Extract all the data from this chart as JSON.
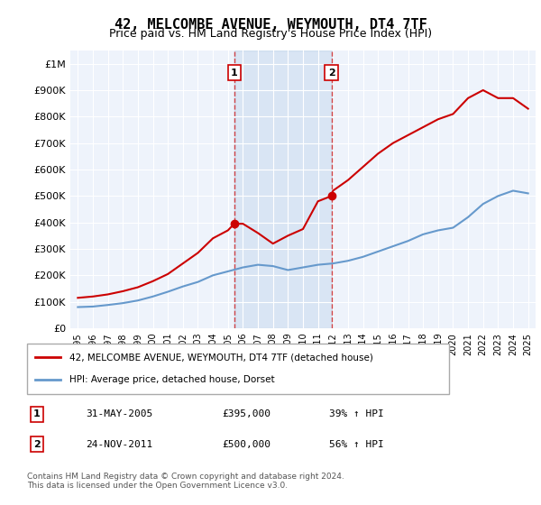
{
  "title": "42, MELCOMBE AVENUE, WEYMOUTH, DT4 7TF",
  "subtitle": "Price paid vs. HM Land Registry's House Price Index (HPI)",
  "hpi_label": "HPI: Average price, detached house, Dorset",
  "property_label": "42, MELCOMBE AVENUE, WEYMOUTH, DT4 7TF (detached house)",
  "sale1": {
    "date": "31-MAY-2005",
    "price": 395000,
    "hpi_pct": "39% ↑ HPI",
    "label": "1",
    "x": 2005.42
  },
  "sale2": {
    "date": "24-NOV-2011",
    "price": 500000,
    "hpi_pct": "56% ↑ HPI",
    "label": "2",
    "x": 2011.9
  },
  "property_color": "#cc0000",
  "hpi_color": "#6699cc",
  "vline_color": "#cc0000",
  "background_color": "#ffffff",
  "plot_bg_color": "#eef3fb",
  "grid_color": "#ffffff",
  "ylim": [
    0,
    1050000
  ],
  "xlim": [
    1994.5,
    2025.5
  ],
  "yticks": [
    0,
    100000,
    200000,
    300000,
    400000,
    500000,
    600000,
    700000,
    800000,
    900000,
    1000000
  ],
  "ytick_labels": [
    "£0",
    "£100K",
    "£200K",
    "£300K",
    "£400K",
    "£500K",
    "£600K",
    "£700K",
    "£800K",
    "£900K",
    "£1M"
  ],
  "xtick_years": [
    1995,
    1996,
    1997,
    1998,
    1999,
    2000,
    2001,
    2002,
    2003,
    2004,
    2005,
    2006,
    2007,
    2008,
    2009,
    2010,
    2011,
    2012,
    2013,
    2014,
    2015,
    2016,
    2017,
    2018,
    2019,
    2020,
    2021,
    2022,
    2023,
    2024,
    2025
  ],
  "footer": "Contains HM Land Registry data © Crown copyright and database right 2024.\nThis data is licensed under the Open Government Licence v3.0.",
  "hpi_data_x": [
    1995,
    1996,
    1997,
    1998,
    1999,
    2000,
    2001,
    2002,
    2003,
    2004,
    2005,
    2006,
    2007,
    2008,
    2009,
    2010,
    2011,
    2012,
    2013,
    2014,
    2015,
    2016,
    2017,
    2018,
    2019,
    2020,
    2021,
    2022,
    2023,
    2024,
    2025
  ],
  "hpi_data_y": [
    80000,
    82000,
    88000,
    95000,
    105000,
    120000,
    138000,
    158000,
    175000,
    200000,
    215000,
    230000,
    240000,
    235000,
    220000,
    230000,
    240000,
    245000,
    255000,
    270000,
    290000,
    310000,
    330000,
    355000,
    370000,
    380000,
    420000,
    470000,
    500000,
    520000,
    510000
  ],
  "prop_data_x": [
    1995,
    1996,
    1997,
    1998,
    1999,
    2000,
    2001,
    2002,
    2003,
    2004,
    2005,
    2005.42,
    2006,
    2007,
    2008,
    2009,
    2010,
    2011,
    2011.9,
    2012,
    2013,
    2014,
    2015,
    2016,
    2017,
    2018,
    2019,
    2020,
    2021,
    2022,
    2023,
    2024,
    2025
  ],
  "prop_data_y": [
    115000,
    120000,
    128000,
    140000,
    155000,
    178000,
    205000,
    245000,
    285000,
    340000,
    370000,
    395000,
    395000,
    360000,
    320000,
    350000,
    375000,
    480000,
    500000,
    520000,
    560000,
    610000,
    660000,
    700000,
    730000,
    760000,
    790000,
    810000,
    870000,
    900000,
    870000,
    870000,
    830000
  ]
}
